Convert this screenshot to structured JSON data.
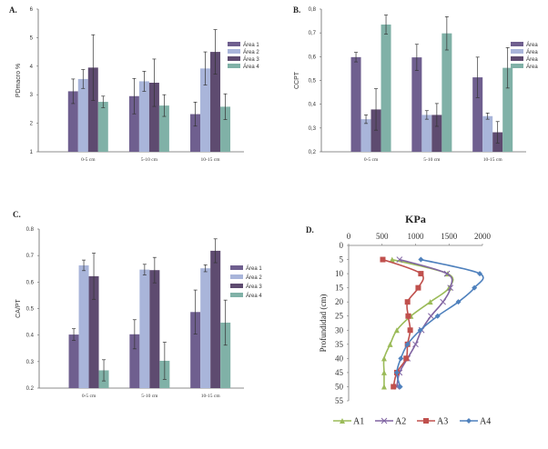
{
  "chart_data": [
    {
      "id": "A",
      "type": "bar",
      "panel_label": "A.",
      "title": "",
      "xlabel": "",
      "ylabel": "PDmacro %",
      "ylim": [
        1,
        6
      ],
      "yticks": [
        "1",
        "2",
        "3",
        "4",
        "5",
        "6"
      ],
      "categories": [
        "0-5 cm",
        "5-10 cm",
        "10-15 cm"
      ],
      "legend_position": "right",
      "series": [
        {
          "name": "Área 1",
          "color": "#6f5f8f",
          "values": [
            3.12,
            2.95,
            2.32
          ],
          "errors": [
            0.43,
            0.62,
            0.42
          ]
        },
        {
          "name": "Área 2",
          "color": "#a9b5da",
          "values": [
            3.55,
            3.47,
            3.92
          ],
          "errors": [
            0.33,
            0.35,
            0.58
          ]
        },
        {
          "name": "Área 3",
          "color": "#5e4b70",
          "values": [
            3.95,
            3.42,
            4.5
          ],
          "errors": [
            1.15,
            0.83,
            0.78
          ]
        },
        {
          "name": "Área 4",
          "color": "#80b1a7",
          "values": [
            2.75,
            2.62,
            2.58
          ],
          "errors": [
            0.2,
            0.38,
            0.45
          ]
        }
      ]
    },
    {
      "id": "B",
      "type": "bar",
      "panel_label": "B.",
      "title": "",
      "xlabel": "",
      "ylabel": "CCPT",
      "ylim": [
        0.2,
        0.8
      ],
      "yticks": [
        "0,2",
        "0,3",
        "0,4",
        "0,5",
        "0,6",
        "0,7",
        "0,8"
      ],
      "categories": [
        "0-5 cm",
        "5-10 cm",
        "10-15 cm"
      ],
      "legend_position": "right",
      "series": [
        {
          "name": "Área",
          "color": "#6f5f8f",
          "values": [
            0.598,
            0.597,
            0.513
          ],
          "errors": [
            0.02,
            0.055,
            0.085
          ]
        },
        {
          "name": "Área",
          "color": "#a9b5da",
          "values": [
            0.337,
            0.355,
            0.35
          ],
          "errors": [
            0.018,
            0.018,
            0.013
          ]
        },
        {
          "name": "Área",
          "color": "#5e4b70",
          "values": [
            0.378,
            0.355,
            0.282
          ],
          "errors": [
            0.087,
            0.048,
            0.045
          ]
        },
        {
          "name": "Área",
          "color": "#80b1a7",
          "values": [
            0.735,
            0.698,
            0.553
          ],
          "errors": [
            0.04,
            0.07,
            0.085
          ]
        }
      ]
    },
    {
      "id": "C",
      "type": "bar",
      "panel_label": "C.",
      "title": "",
      "xlabel": "",
      "ylabel": "CA/PT",
      "ylim": [
        0.2,
        0.8
      ],
      "yticks": [
        "0.2",
        "0.3",
        "0.4",
        "0.5",
        "0.6",
        "0.7",
        "0.8"
      ],
      "categories": [
        "0-5 cm",
        "5-10 cm",
        "10-15 cm"
      ],
      "legend_position": "right",
      "series": [
        {
          "name": "Área 1",
          "color": "#6f5f8f",
          "values": [
            0.402,
            0.403,
            0.487
          ],
          "errors": [
            0.022,
            0.055,
            0.083
          ]
        },
        {
          "name": "Área 2",
          "color": "#a9b5da",
          "values": [
            0.663,
            0.647,
            0.652
          ],
          "errors": [
            0.02,
            0.02,
            0.013
          ]
        },
        {
          "name": "Área 3",
          "color": "#5e4b70",
          "values": [
            0.622,
            0.645,
            0.718
          ],
          "errors": [
            0.087,
            0.048,
            0.045
          ]
        },
        {
          "name": "Área 4",
          "color": "#80b1a7",
          "values": [
            0.267,
            0.303,
            0.447
          ],
          "errors": [
            0.04,
            0.07,
            0.085
          ]
        }
      ]
    },
    {
      "id": "D",
      "type": "line",
      "panel_label": "D.",
      "title": "KPa",
      "xlabel": "KPa",
      "ylabel": "Profundidad (cm)",
      "xlim": [
        0,
        2000
      ],
      "ylim": [
        0,
        55
      ],
      "xticks": [
        "0",
        "500",
        "1000",
        "1500",
        "2000"
      ],
      "yticks": [
        "0",
        "5",
        "10",
        "15",
        "20",
        "25",
        "30",
        "35",
        "40",
        "45",
        "50",
        "55"
      ],
      "y_inverted": true,
      "x_axis_position": "top",
      "legend_position": "bottom",
      "depths": [
        5,
        10,
        15,
        20,
        25,
        30,
        35,
        40,
        45,
        50
      ],
      "series": [
        {
          "name": "A1",
          "color": "#9bbb59",
          "marker": "triangle",
          "values": [
            650,
            1480,
            1500,
            1220,
            930,
            720,
            620,
            530,
            530,
            530
          ]
        },
        {
          "name": "A2",
          "color": "#8064a2",
          "marker": "x",
          "values": [
            760,
            1470,
            1520,
            1410,
            1230,
            1090,
            1000,
            880,
            760,
            720
          ]
        },
        {
          "name": "A3",
          "color": "#c0504d",
          "marker": "square",
          "values": [
            510,
            1080,
            1040,
            880,
            890,
            920,
            880,
            860,
            720,
            670
          ]
        },
        {
          "name": "A4",
          "color": "#4f81bd",
          "marker": "diamond",
          "values": [
            1080,
            1960,
            1880,
            1640,
            1330,
            1070,
            880,
            780,
            720,
            770
          ]
        }
      ]
    }
  ]
}
